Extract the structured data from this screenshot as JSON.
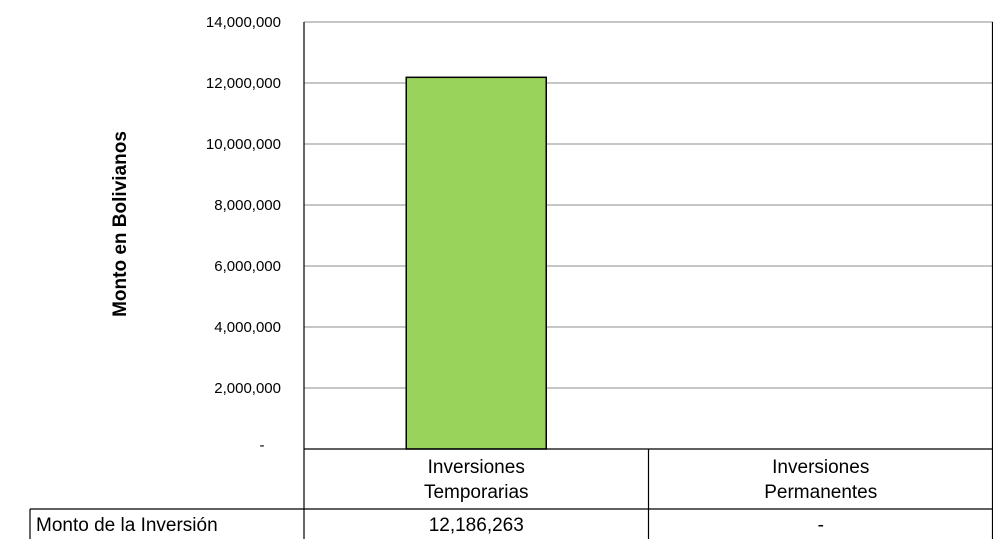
{
  "chart_data": {
    "type": "bar",
    "ylabel": "Monto en Bolivianos",
    "categories": [
      "Inversiones Temporarias",
      "Inversiones Permanentes"
    ],
    "category_lines": [
      [
        "Inversiones",
        "Temporarias"
      ],
      [
        "Inversiones",
        "Permanentes"
      ]
    ],
    "values": [
      12186263,
      0
    ],
    "ylim": [
      0,
      14000000
    ],
    "ytick_values": [
      0,
      2000000,
      4000000,
      6000000,
      8000000,
      10000000,
      12000000,
      14000000
    ],
    "ytick_labels": [
      "-",
      "2,000,000",
      "4,000,000",
      "6,000,000",
      "8,000,000",
      "10,000,000",
      "12,000,000",
      "14,000,000"
    ],
    "grid": true,
    "bar_color": "#99d35c",
    "data_table": {
      "row_label": "Monto de la Inversión",
      "cells": [
        "12,186,263",
        "-"
      ]
    }
  }
}
